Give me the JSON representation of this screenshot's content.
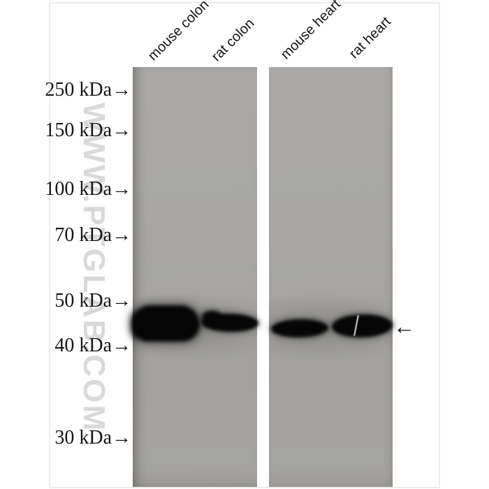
{
  "blot": {
    "watermark": "WWW.PTGLAB.COM",
    "lanes": [
      {
        "label": "mouse colon"
      },
      {
        "label": "rat colon"
      },
      {
        "label": "mouse heart"
      },
      {
        "label": "rat heart"
      }
    ],
    "markers": [
      {
        "label": "250 kDa→"
      },
      {
        "label": "150 kDa→"
      },
      {
        "label": "100 kDa→"
      },
      {
        "label": "70 kDa→"
      },
      {
        "label": "50 kDa→"
      },
      {
        "label": "40 kDa→"
      },
      {
        "label": "30 kDa→"
      }
    ],
    "arrow_annotation": "←",
    "colors": {
      "membrane_gray": "#a8a7a5",
      "band_black": "#060606",
      "watermark_gray": "#d9d9d9",
      "label_black": "#161616"
    }
  }
}
